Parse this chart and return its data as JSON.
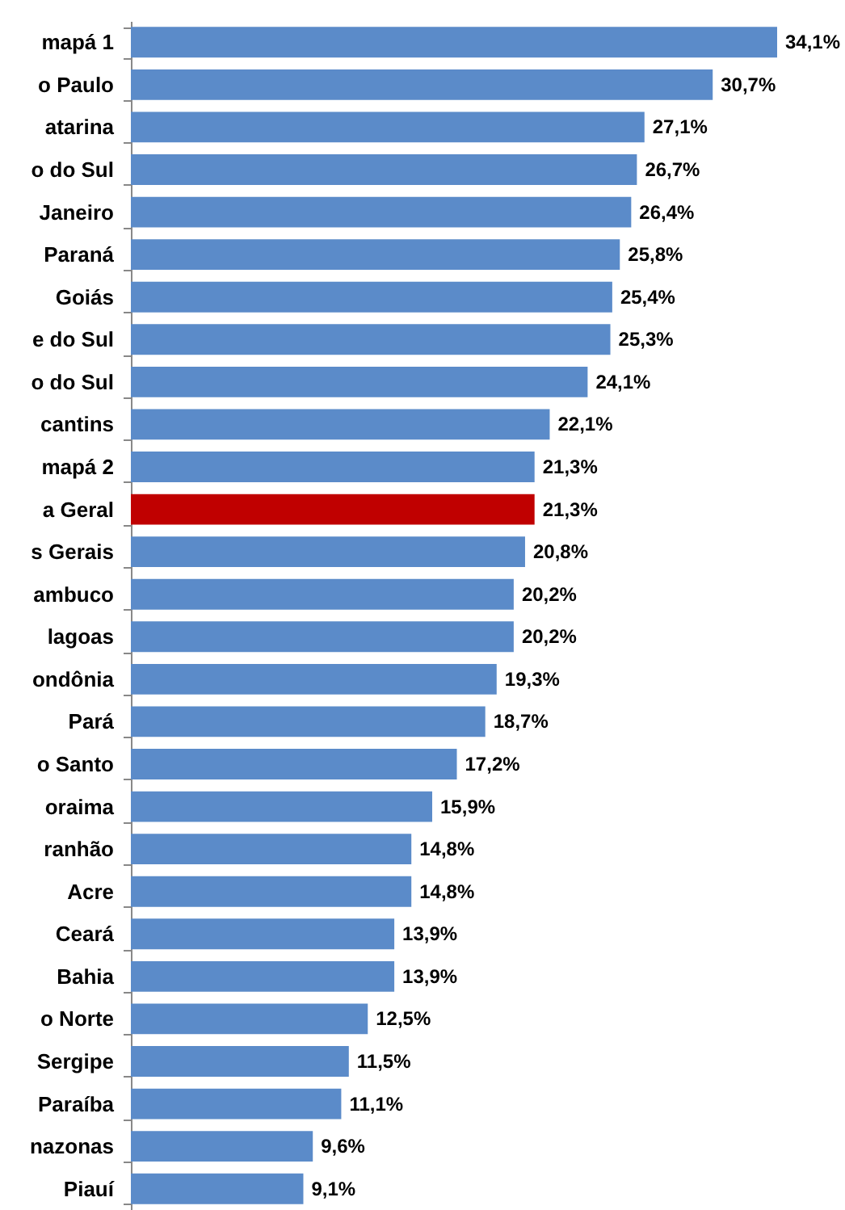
{
  "chart_data": {
    "type": "bar",
    "orientation": "horizontal",
    "value_labels": [
      "34,1%",
      "30,7%",
      "27,1%",
      "26,7%",
      "26,4%",
      "25,8%",
      "25,4%",
      "25,3%",
      "24,1%",
      "22,1%",
      "21,3%",
      "21,3%",
      "20,8%",
      "20,2%",
      "20,2%",
      "19,3%",
      "18,7%",
      "17,2%",
      "15,9%",
      "14,8%",
      "14,8%",
      "13,9%",
      "13,9%",
      "12,5%",
      "11,5%",
      "11,1%",
      "9,6%",
      "9,1%"
    ],
    "categories": [
      "mapá 1",
      "o Paulo",
      "atarina",
      "o do Sul",
      "Janeiro",
      "Paraná",
      "Goiás",
      "e do Sul",
      "o do Sul",
      "cantins",
      "mapá 2",
      "a Geral",
      "s Gerais",
      "ambuco",
      "lagoas",
      "ondônia",
      "Pará",
      "o Santo",
      "oraima",
      "ranhão",
      "Acre",
      "Ceará",
      "Bahia",
      "o Norte",
      "Sergipe",
      "Paraíba",
      "nazonas",
      "Piauí"
    ],
    "values": [
      34.1,
      30.7,
      27.1,
      26.7,
      26.4,
      25.8,
      25.4,
      25.3,
      24.1,
      22.1,
      21.3,
      21.3,
      20.8,
      20.2,
      20.2,
      19.3,
      18.7,
      17.2,
      15.9,
      14.8,
      14.8,
      13.9,
      13.9,
      12.5,
      11.5,
      11.1,
      9.6,
      9.1
    ],
    "colors": [
      "#5b8bc9",
      "#5b8bc9",
      "#5b8bc9",
      "#5b8bc9",
      "#5b8bc9",
      "#5b8bc9",
      "#5b8bc9",
      "#5b8bc9",
      "#5b8bc9",
      "#5b8bc9",
      "#5b8bc9",
      "#c00000",
      "#5b8bc9",
      "#5b8bc9",
      "#5b8bc9",
      "#5b8bc9",
      "#5b8bc9",
      "#5b8bc9",
      "#5b8bc9",
      "#5b8bc9",
      "#5b8bc9",
      "#5b8bc9",
      "#5b8bc9",
      "#5b8bc9",
      "#5b8bc9",
      "#5b8bc9",
      "#5b8bc9",
      "#5b8bc9"
    ],
    "grid": false
  }
}
